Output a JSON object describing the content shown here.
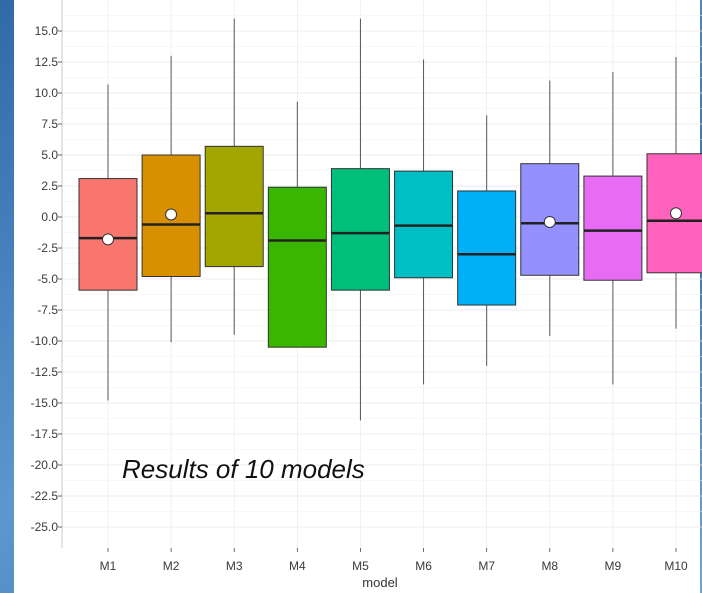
{
  "chart_data": {
    "type": "boxplot",
    "xlabel": "model",
    "ylabel": "",
    "ylim": [
      -27,
      16
    ],
    "yticks": [
      15.0,
      12.5,
      10.0,
      7.5,
      5.0,
      2.5,
      0.0,
      -2.5,
      -5.0,
      -7.5,
      -10.0,
      -12.5,
      -15.0,
      -17.5,
      -20.0,
      -22.5,
      -25.0
    ],
    "yticklabels": [
      "15.0",
      "12.5",
      "10.0",
      "7.5",
      "5.0",
      "2.5",
      "0.0",
      "-2.5",
      "-5.0",
      "-7.5",
      "-10.0",
      "-12.5",
      "-15.0",
      "-17.5",
      "-20.0",
      "-22.5",
      "-25.0"
    ],
    "grid": true,
    "annotation": "Results of 10 models",
    "series": [
      {
        "category": "M1",
        "color": "#f8766d",
        "min": -14.8,
        "q1": -5.9,
        "median": -1.7,
        "q3": 3.1,
        "max": 10.7,
        "mean": -1.8
      },
      {
        "category": "M2",
        "color": "#d89000",
        "min": -10.1,
        "q1": -4.8,
        "median": -0.6,
        "q3": 5.0,
        "max": 13.0,
        "mean": 0.2
      },
      {
        "category": "M3",
        "color": "#a3a500",
        "min": -9.5,
        "q1": -4.0,
        "median": 0.3,
        "q3": 5.7,
        "max": null,
        "mean": null
      },
      {
        "category": "M4",
        "color": "#39b600",
        "min": null,
        "q1": -10.5,
        "median": -1.9,
        "q3": 2.4,
        "max": 9.3,
        "mean": null
      },
      {
        "category": "M5",
        "color": "#00bf7d",
        "min": -16.4,
        "q1": -5.9,
        "median": -1.3,
        "q3": 3.9,
        "max": null,
        "mean": null
      },
      {
        "category": "M6",
        "color": "#00bfc4",
        "min": -13.5,
        "q1": -4.9,
        "median": -0.7,
        "q3": 3.7,
        "max": 12.7,
        "mean": null
      },
      {
        "category": "M7",
        "color": "#00b0f6",
        "min": -12.0,
        "q1": -7.1,
        "median": -3.0,
        "q3": 2.1,
        "max": 8.2,
        "mean": null
      },
      {
        "category": "M8",
        "color": "#9590ff",
        "min": -9.6,
        "q1": -4.7,
        "median": -0.5,
        "q3": 4.3,
        "max": 11.0,
        "mean": -0.4
      },
      {
        "category": "M9",
        "color": "#e76bf3",
        "min": -13.5,
        "q1": -5.1,
        "median": -1.1,
        "q3": 3.3,
        "max": 11.7,
        "mean": null
      },
      {
        "category": "M10",
        "color": "#ff62bc",
        "min": -9.0,
        "q1": -4.5,
        "median": -0.3,
        "q3": 5.1,
        "max": 12.9,
        "mean": 0.3
      }
    ]
  }
}
